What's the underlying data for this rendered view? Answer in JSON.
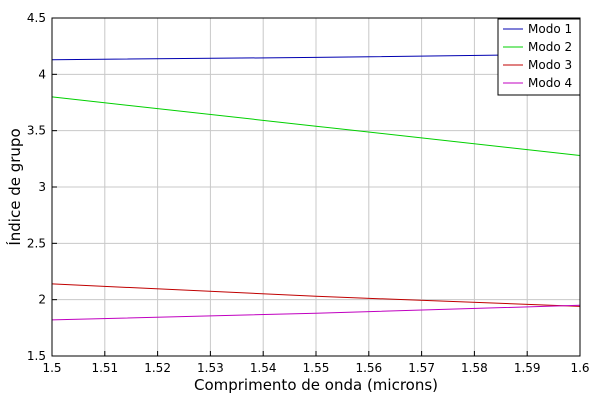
{
  "chart_data": {
    "type": "line",
    "xlabel": "Comprimento de onda (microns)",
    "ylabel": "Índice de grupo",
    "xlim": [
      1.5,
      1.6
    ],
    "ylim": [
      1.5,
      4.5
    ],
    "x_ticks": [
      1.5,
      1.51,
      1.52,
      1.53,
      1.54,
      1.55,
      1.56,
      1.57,
      1.58,
      1.59,
      1.6
    ],
    "x_tick_labels": [
      "1.5",
      "1.51",
      "1.52",
      "1.53",
      "1.54",
      "1.55",
      "1.56",
      "1.57",
      "1.58",
      "1.59",
      "1.6"
    ],
    "y_ticks": [
      1.5,
      2,
      2.5,
      3,
      3.5,
      4,
      4.5
    ],
    "y_tick_labels": [
      "1.5",
      "2",
      "2.5",
      "3",
      "3.5",
      "4",
      "4.5"
    ],
    "grid": true,
    "legend_position": "top-right",
    "x": [
      1.5,
      1.55,
      1.6
    ],
    "series": [
      {
        "name": "Modo 1",
        "color": "#0000b0",
        "values": [
          4.13,
          4.15,
          4.18
        ]
      },
      {
        "name": "Modo 2",
        "color": "#00d000",
        "values": [
          3.8,
          3.54,
          3.28
        ]
      },
      {
        "name": "Modo 3",
        "color": "#c00000",
        "values": [
          2.14,
          2.03,
          1.94
        ]
      },
      {
        "name": "Modo 4",
        "color": "#c000c0",
        "values": [
          1.82,
          1.88,
          1.95
        ]
      }
    ]
  }
}
